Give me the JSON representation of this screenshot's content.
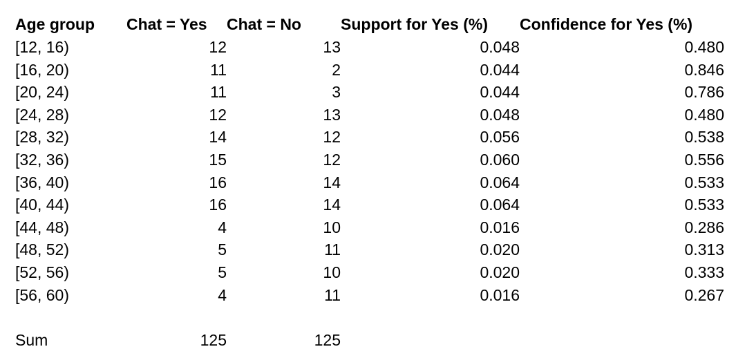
{
  "table": {
    "headers": [
      "Age group",
      "Chat = Yes",
      "Chat = No",
      "Support for Yes (%)",
      "Confidence for Yes (%)"
    ],
    "rows": [
      [
        "[12, 16)",
        "12",
        "13",
        "0.048",
        "0.480"
      ],
      [
        "[16, 20)",
        "11",
        "2",
        "0.044",
        "0.846"
      ],
      [
        "[20, 24)",
        "11",
        "3",
        "0.044",
        "0.786"
      ],
      [
        "[24, 28)",
        "12",
        "13",
        "0.048",
        "0.480"
      ],
      [
        "[28, 32)",
        "14",
        "12",
        "0.056",
        "0.538"
      ],
      [
        "[32, 36)",
        "15",
        "12",
        "0.060",
        "0.556"
      ],
      [
        "[36, 40)",
        "16",
        "14",
        "0.064",
        "0.533"
      ],
      [
        "[40, 44)",
        "16",
        "14",
        "0.064",
        "0.533"
      ],
      [
        "[44, 48)",
        "4",
        "10",
        "0.016",
        "0.286"
      ],
      [
        "[48, 52)",
        "5",
        "11",
        "0.020",
        "0.313"
      ],
      [
        "[52, 56)",
        "5",
        "10",
        "0.020",
        "0.333"
      ],
      [
        "[56, 60)",
        "4",
        "11",
        "0.016",
        "0.267"
      ]
    ],
    "sum": {
      "label": "Sum",
      "yes": "125",
      "no": "125"
    }
  }
}
